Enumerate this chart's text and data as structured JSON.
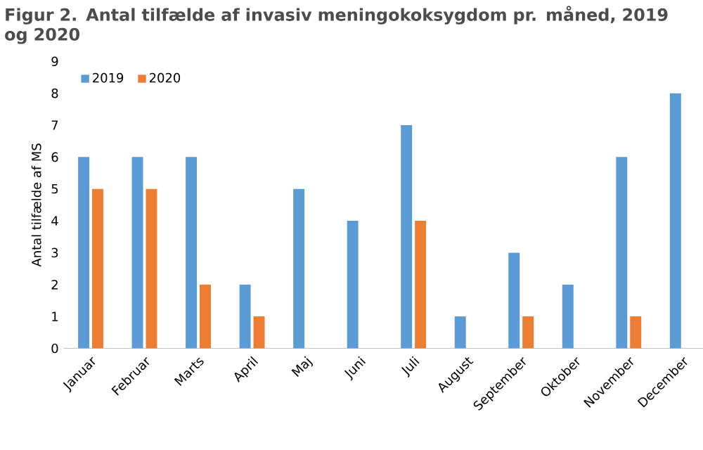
{
  "chart_data": {
    "type": "bar",
    "title": "Figur 2. Antal tilfælde af invasiv meningokoksygdom pr. måned, 2019 og 2020",
    "ylabel": "Antal tilfælde af MS",
    "categories": [
      "Januar",
      "Februar",
      "Marts",
      "April",
      "Maj",
      "Juni",
      "Juli",
      "August",
      "September",
      "Oktober",
      "November",
      "December"
    ],
    "series": [
      {
        "name": "2019",
        "color": "#5b9bd5",
        "values": [
          6,
          6,
          6,
          2,
          5,
          4,
          7,
          1,
          3,
          2,
          6,
          8
        ]
      },
      {
        "name": "2020",
        "color": "#ed7d31",
        "values": [
          5,
          5,
          2,
          1,
          0,
          0,
          4,
          0,
          1,
          0,
          1,
          0
        ]
      }
    ],
    "ylim": [
      0,
      9
    ],
    "yticks": [
      0,
      1,
      2,
      3,
      4,
      5,
      6,
      7,
      8,
      9
    ],
    "grid": false,
    "legend": "top left"
  }
}
